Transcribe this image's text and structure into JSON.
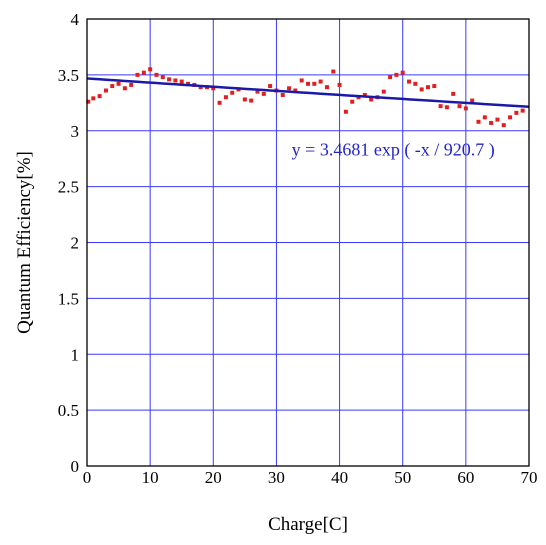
{
  "chart_data": {
    "type": "scatter",
    "xlabel": "Charge[C]",
    "ylabel": "Quantum Efficiency[%]",
    "xlim": [
      0,
      70
    ],
    "ylim": [
      0,
      4
    ],
    "x_ticks": [
      0,
      10,
      20,
      30,
      40,
      50,
      60,
      70
    ],
    "y_ticks": [
      0,
      0.5,
      1,
      1.5,
      2,
      2.5,
      3,
      3.5,
      4
    ],
    "x_tick_labels": [
      "0",
      "10",
      "20",
      "30",
      "40",
      "50",
      "60",
      "70"
    ],
    "y_tick_labels": [
      "0",
      "0.5",
      "1",
      "1.5",
      "2",
      "2.5",
      "3",
      "3.5",
      "4"
    ],
    "grid": true,
    "series": [
      {
        "type": "scatter",
        "color": "#e02020",
        "points": [
          [
            0.2,
            3.26
          ],
          [
            1,
            3.29
          ],
          [
            2,
            3.31
          ],
          [
            3,
            3.36
          ],
          [
            4,
            3.4
          ],
          [
            5,
            3.42
          ],
          [
            6,
            3.38
          ],
          [
            7,
            3.41
          ],
          [
            8,
            3.5
          ],
          [
            9,
            3.52
          ],
          [
            10,
            3.55
          ],
          [
            11,
            3.5
          ],
          [
            12,
            3.48
          ],
          [
            13,
            3.46
          ],
          [
            14,
            3.45
          ],
          [
            15,
            3.44
          ],
          [
            16,
            3.42
          ],
          [
            17,
            3.41
          ],
          [
            18,
            3.39
          ],
          [
            19,
            3.39
          ],
          [
            20,
            3.38
          ],
          [
            21,
            3.25
          ],
          [
            22,
            3.3
          ],
          [
            23,
            3.34
          ],
          [
            24,
            3.37
          ],
          [
            25,
            3.28
          ],
          [
            26,
            3.27
          ],
          [
            27,
            3.35
          ],
          [
            28,
            3.33
          ],
          [
            29,
            3.4
          ],
          [
            30,
            3.36
          ],
          [
            31,
            3.32
          ],
          [
            32,
            3.38
          ],
          [
            33,
            3.36
          ],
          [
            34,
            3.45
          ],
          [
            35,
            3.42
          ],
          [
            36,
            3.42
          ],
          [
            37,
            3.44
          ],
          [
            38,
            3.39
          ],
          [
            39,
            3.53
          ],
          [
            40,
            3.41
          ],
          [
            41,
            3.17
          ],
          [
            42,
            3.26
          ],
          [
            43,
            3.3
          ],
          [
            44,
            3.32
          ],
          [
            45,
            3.28
          ],
          [
            46,
            3.3
          ],
          [
            47,
            3.35
          ],
          [
            48,
            3.48
          ],
          [
            49,
            3.5
          ],
          [
            50,
            3.52
          ],
          [
            51,
            3.44
          ],
          [
            52,
            3.42
          ],
          [
            53,
            3.37
          ],
          [
            54,
            3.39
          ],
          [
            55,
            3.4
          ],
          [
            56,
            3.22
          ],
          [
            57,
            3.21
          ],
          [
            58,
            3.33
          ],
          [
            59,
            3.22
          ],
          [
            60,
            3.2
          ],
          [
            61,
            3.27
          ],
          [
            62,
            3.08
          ],
          [
            63,
            3.12
          ],
          [
            64,
            3.07
          ],
          [
            65,
            3.1
          ],
          [
            66,
            3.05
          ],
          [
            67,
            3.12
          ],
          [
            68,
            3.16
          ],
          [
            69,
            3.18
          ]
        ]
      },
      {
        "type": "line",
        "color": "#1a1aaa",
        "fit": {
          "a": 3.4681,
          "tau": 920.7
        }
      }
    ],
    "annotations": [
      {
        "text": "y = 3.4681 exp ( -x / 920.7 )",
        "x": 48.5,
        "y": 2.78
      }
    ]
  }
}
